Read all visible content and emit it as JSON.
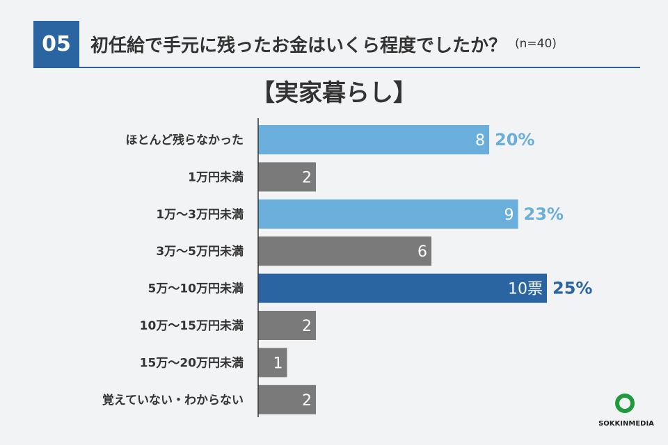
{
  "header": {
    "number": "05",
    "title": "初任給で手元に残ったお金はいくら程度でしたか？",
    "n": "(n=40)"
  },
  "subtitle": "【実家暮らし】",
  "chart_data": {
    "type": "bar",
    "orientation": "horizontal",
    "categories": [
      "ほとんど残らなかった",
      "1万円未満",
      "1万〜3万円未満",
      "3万〜5万円未満",
      "5万〜10万円未満",
      "10万〜15万円未満",
      "15万〜20万円未満",
      "覚えていない・わからない"
    ],
    "values": [
      8,
      2,
      9,
      6,
      10,
      2,
      1,
      2
    ],
    "value_labels": [
      "8",
      "2",
      "9",
      "6",
      "10票",
      "2",
      "1",
      "2"
    ],
    "percent_labels": [
      "20%",
      "",
      "23%",
      "",
      "25%",
      "",
      "",
      ""
    ],
    "bar_colors": [
      "#6aaedc",
      "#7a7a7a",
      "#6aaedc",
      "#7a7a7a",
      "#2a65a2",
      "#7a7a7a",
      "#7a7a7a",
      "#7a7a7a"
    ],
    "percent_colors": [
      "#6aaedc",
      "",
      "#6aaedc",
      "",
      "#2a65a2",
      "",
      "",
      ""
    ],
    "xlim": [
      0,
      10
    ]
  },
  "logo": {
    "text": "SOKKINMEDIA"
  }
}
